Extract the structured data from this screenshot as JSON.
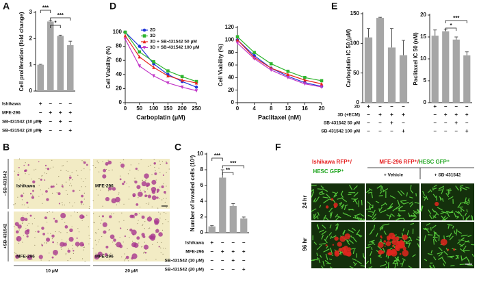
{
  "panel_labels": [
    "A",
    "B",
    "C",
    "D",
    "E",
    "F"
  ],
  "chart_data": [
    {
      "type": "bar",
      "ylabel": "Cell proliferation (fold change)",
      "categories": [
        null,
        null,
        null,
        null
      ],
      "values": [
        1.0,
        2.65,
        2.1,
        1.75
      ],
      "errors": [
        0.02,
        0.03,
        0.03,
        0.15
      ],
      "color": "#a6a6a6",
      "ylim": [
        0,
        3
      ],
      "yticks": [
        0,
        1,
        2,
        3
      ],
      "annotations": [
        "***",
        "*",
        "***"
      ],
      "treatments": [
        {
          "label": "Ishikawa",
          "signs": [
            "+",
            "–",
            "–",
            "–"
          ]
        },
        {
          "label": "MFE-296",
          "signs": [
            "–",
            "+",
            "+",
            "+"
          ]
        },
        {
          "label": "SB-431542 (10 μM)",
          "signs": [
            "–",
            "–",
            "+",
            "–"
          ]
        },
        {
          "label": "SB-431542 (20 μM)",
          "signs": [
            "–",
            "–",
            "–",
            "+"
          ]
        }
      ]
    },
    {
      "type": "line",
      "xlabel": "Carboplatin (μM)",
      "ylabel": "Cell Viability (%)",
      "x": [
        0,
        50,
        100,
        150,
        200,
        250
      ],
      "xlim": [
        0,
        250
      ],
      "xticks": [
        0,
        50,
        100,
        150,
        200,
        250
      ],
      "ylim": [
        0,
        100
      ],
      "yticks": [
        0,
        20,
        40,
        60,
        80,
        100
      ],
      "legend": "top",
      "series": [
        {
          "name": "2D",
          "color": "#2036d8",
          "marker": "circle",
          "values": [
            100,
            80,
            55,
            40,
            30,
            22
          ]
        },
        {
          "name": "3D",
          "color": "#2fb52f",
          "marker": "square",
          "values": [
            100,
            72,
            58,
            45,
            37,
            30
          ]
        },
        {
          "name": "3D + SB-431542 50 μM",
          "color": "#e8251e",
          "marker": "triangle",
          "values": [
            95,
            65,
            50,
            38,
            32,
            28
          ]
        },
        {
          "name": "3D + SB-431542 100 μM",
          "color": "#c238c8",
          "marker": "triangle-down",
          "values": [
            90,
            52,
            38,
            28,
            22,
            17
          ]
        }
      ]
    },
    {
      "type": "line",
      "xlabel": "Paclitaxel (nM)",
      "ylabel": "Cell Viability (%)",
      "x": [
        0,
        4,
        8,
        12,
        16,
        20
      ],
      "xlim": [
        0,
        20
      ],
      "xticks": [
        0,
        4,
        8,
        12,
        16,
        20
      ],
      "ylim": [
        0,
        120
      ],
      "yticks": [
        0,
        20,
        40,
        60,
        80,
        100,
        120
      ],
      "legend": false,
      "series": [
        {
          "name": "2D",
          "color": "#2036d8",
          "marker": "circle",
          "values": [
            100,
            75,
            55,
            42,
            32,
            26
          ]
        },
        {
          "name": "3D",
          "color": "#2fb52f",
          "marker": "square",
          "values": [
            105,
            80,
            62,
            50,
            40,
            35
          ]
        },
        {
          "name": "3D + SB-431542 50 μM",
          "color": "#e8251e",
          "marker": "triangle",
          "values": [
            100,
            72,
            55,
            45,
            36,
            30
          ]
        },
        {
          "name": "3D + SB-431542 100 μM",
          "color": "#c238c8",
          "marker": "triangle-down",
          "values": [
            95,
            70,
            52,
            40,
            30,
            25
          ]
        }
      ]
    },
    {
      "type": "bar",
      "ylabel": "Carboplatin IC 50 (μM)",
      "categories": [
        null,
        null,
        null,
        null
      ],
      "values": [
        110,
        143,
        93,
        80
      ],
      "errors": [
        15,
        1,
        32,
        25
      ],
      "color": "#a6a6a6",
      "ylim": [
        0,
        150
      ],
      "yticks": [
        0,
        50,
        100,
        150
      ],
      "annotations": [],
      "treatments": [
        {
          "label": "2D",
          "signs": [
            "+",
            "–",
            "–",
            "–"
          ]
        },
        {
          "label": "3D (+ECM)",
          "signs": [
            "–",
            "+",
            "+",
            "+"
          ]
        },
        {
          "label": "SB-431542 50 μM",
          "signs": [
            "–",
            "–",
            "+",
            "–"
          ]
        },
        {
          "label": "SB-431542 100 μM",
          "signs": [
            "–",
            "–",
            "–",
            "+"
          ]
        }
      ]
    },
    {
      "type": "bar",
      "ylabel": "Paclitaxel IC 50 (nM)",
      "categories": [
        null,
        null,
        null,
        null
      ],
      "values": [
        15.3,
        16.3,
        14.4,
        10.8
      ],
      "errors": [
        1.3,
        0.5,
        0.6,
        0.8
      ],
      "color": "#a6a6a6",
      "ylim": [
        0,
        20
      ],
      "yticks": [
        0,
        5,
        10,
        15,
        20
      ],
      "annotations": [
        "***",
        "*"
      ]
    },
    {
      "type": "bar",
      "ylabel": "Number of invaded cells (10³)",
      "categories": [
        null,
        null,
        null,
        null
      ],
      "values": [
        0.8,
        7.0,
        3.4,
        1.8
      ],
      "errors": [
        0.1,
        1.0,
        0.3,
        0.2
      ],
      "color": "#a6a6a6",
      "ylim": [
        0,
        10
      ],
      "yticks": [
        0,
        2,
        4,
        6,
        8,
        10
      ],
      "annotations": [
        "***",
        "***",
        "**"
      ],
      "treatments": [
        {
          "label": "Ishikawa",
          "signs": [
            "+",
            "–",
            "–",
            "–"
          ]
        },
        {
          "label": "MFE-296",
          "signs": [
            "–",
            "+",
            "+",
            "+"
          ]
        },
        {
          "label": "SB-431542 (10 μM)",
          "signs": [
            "–",
            "–",
            "+",
            "–"
          ]
        },
        {
          "label": "SB-431542 (20 μM)",
          "signs": [
            "–",
            "–",
            "–",
            "+"
          ]
        }
      ]
    }
  ],
  "image_panels": {
    "B": {
      "cells": [
        "Ishikawa",
        "MFE-296",
        "MFE-296",
        "MFE-296"
      ],
      "rows": [
        "–SB-431542",
        "+SB-431542"
      ],
      "columns": [
        "10 μM",
        "20 μM"
      ]
    },
    "F": {
      "headers": [
        "Ishikawa RFP⁺/",
        "HESC GFP⁺",
        "MFE-296 RFP⁺/",
        "HESC GFP⁺"
      ],
      "conditions": [
        "+ Vehicle",
        "+ SB-431542"
      ],
      "rows": [
        "24 hr",
        "96 hr"
      ]
    }
  }
}
